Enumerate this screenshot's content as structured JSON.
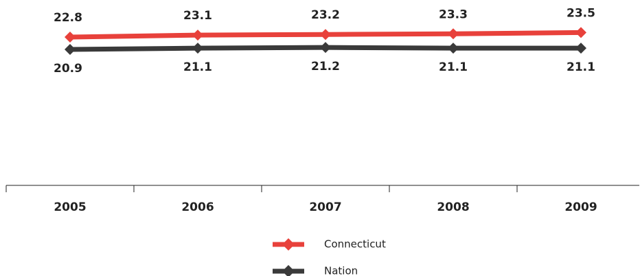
{
  "chart_data": {
    "type": "line",
    "categories": [
      "2005",
      "2006",
      "2007",
      "2008",
      "2009"
    ],
    "series": [
      {
        "name": "Connecticut",
        "color": "#e8413b",
        "values": [
          22.8,
          23.1,
          23.2,
          23.3,
          23.5
        ]
      },
      {
        "name": "Nation",
        "color": "#3a3a3a",
        "values": [
          20.9,
          21.1,
          21.2,
          21.1,
          21.1
        ]
      }
    ],
    "ylim": [
      0,
      28.5
    ]
  }
}
